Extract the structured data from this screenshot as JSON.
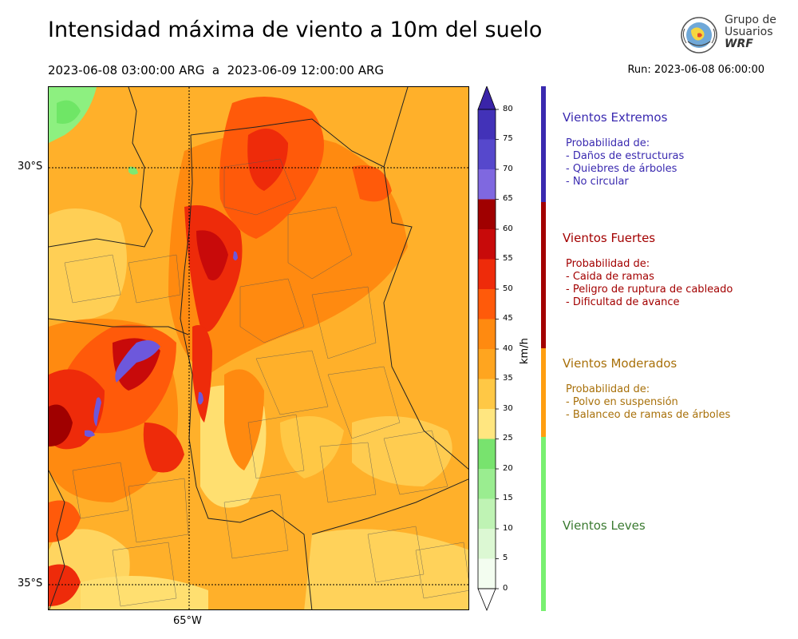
{
  "header": {
    "title": "Intensidad máxima de viento a 10m del suelo",
    "period": "2023-06-08 03:00:00 ARG  a  2023-06-09 12:00:00 ARG",
    "run": "Run: 2023-06-08 06:00:00"
  },
  "logo": {
    "line1": "Grupo de",
    "line2": "Usuarios",
    "line3": "WRF"
  },
  "map": {
    "lat_labels": [
      "30°S",
      "35°S"
    ],
    "lon_labels": [
      "65°W"
    ]
  },
  "colorbar": {
    "unit": "km/h",
    "ticks": [
      "80",
      "75",
      "70",
      "65",
      "60",
      "55",
      "50",
      "45",
      "40",
      "35",
      "30",
      "25",
      "20",
      "15",
      "10",
      "5",
      "0"
    ],
    "colors": {
      "0-5": "#f3fdf0",
      "5-10": "#dcf8d3",
      "10-15": "#bff3b4",
      "15-20": "#9aed90",
      "20-25": "#78e36e",
      "25-30": "#ffe680",
      "30-35": "#ffc845",
      "35-40": "#ffa51f",
      "40-45": "#ff8a10",
      "45-50": "#ff5a0a",
      "50-55": "#ee2b0a",
      "55-60": "#c80a0a",
      "60-65": "#a00000",
      "65-70": "#7f68e0",
      "70-75": "#5648cc",
      "75-80": "#4232b8",
      "80+": "#3a24a8"
    }
  },
  "categories": [
    {
      "title": "Vientos Extremos",
      "color": "#3a2ab0",
      "lines": [
        "Probabilidad de:",
        "- Daños de estructuras",
        "- Quiebres de árboles",
        "- No circular"
      ]
    },
    {
      "title": "Vientos Fuertes",
      "color": "#a30000",
      "lines": [
        "Probabilidad de:",
        "- Caida de ramas",
        "- Peligro de ruptura de cableado",
        "- Dificultad de avance"
      ]
    },
    {
      "title": "Vientos Moderados",
      "color": "#a8700a",
      "lines": [
        "Probabilidad de:",
        "- Polvo en suspensión",
        "- Balanceo de ramas de árboles"
      ]
    },
    {
      "title": "Vientos Leves",
      "color": "#3a7a30",
      "lines": []
    }
  ]
}
